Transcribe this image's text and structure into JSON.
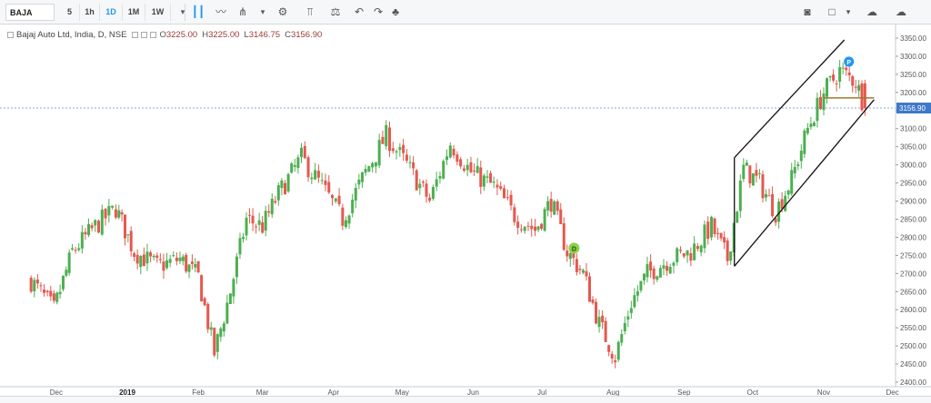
{
  "toolbar": {
    "symbol": "BAJA",
    "timeframes": [
      "5",
      "1h",
      "1D",
      "1M",
      "1W"
    ],
    "active_timeframe": "1D"
  },
  "legend": {
    "title": "Bajaj Auto Ltd, India, D, NSE",
    "open_label": "O",
    "open": "3225.00",
    "high_label": "H",
    "high": "3225.00",
    "low_label": "L",
    "low": "3146.75",
    "close_label": "C",
    "close": "3156.90"
  },
  "markers": {
    "dividend": "D",
    "pivot": "P"
  },
  "price_label": "3156.90",
  "colors": {
    "up": "#4caf50",
    "down": "#e5584f",
    "trend": "#111111",
    "hline": "#a0782d",
    "price_line": "#5b8fd6"
  },
  "chart_data": {
    "type": "candlestick",
    "x_ticks": [
      "Dec",
      "2019",
      "Feb",
      "Mar",
      "Apr",
      "May",
      "Jun",
      "Jul",
      "Aug",
      "Sep",
      "Oct",
      "Nov",
      "Dec"
    ],
    "y_ticks": [
      2400,
      2450,
      2500,
      2550,
      2600,
      2650,
      2700,
      2750,
      2800,
      2850,
      2900,
      2950,
      3000,
      3050,
      3100,
      3150,
      3200,
      3250,
      3300,
      3350
    ],
    "ylim": [
      2390,
      3370
    ],
    "last_price": 3156.9,
    "close_path": [
      [
        "2018-11-20",
        2680
      ],
      [
        "2018-11-30",
        2600
      ],
      [
        "2018-12-08",
        2760
      ],
      [
        "2018-12-18",
        2830
      ],
      [
        "2018-12-27",
        2880
      ],
      [
        "2019-01-04",
        2760
      ],
      [
        "2019-01-14",
        2720
      ],
      [
        "2019-01-24",
        2740
      ],
      [
        "2019-02-01",
        2690
      ],
      [
        "2019-02-08",
        2480
      ],
      [
        "2019-02-15",
        2650
      ],
      [
        "2019-02-22",
        2850
      ],
      [
        "2019-03-01",
        2830
      ],
      [
        "2019-03-08",
        2920
      ],
      [
        "2019-03-18",
        3020
      ],
      [
        "2019-03-27",
        2940
      ],
      [
        "2019-04-05",
        2850
      ],
      [
        "2019-04-15",
        2980
      ],
      [
        "2019-04-24",
        3080
      ],
      [
        "2019-05-03",
        3000
      ],
      [
        "2019-05-13",
        2900
      ],
      [
        "2019-05-22",
        3060
      ],
      [
        "2019-05-31",
        2980
      ],
      [
        "2019-06-10",
        2940
      ],
      [
        "2019-06-19",
        2860
      ],
      [
        "2019-06-28",
        2820
      ],
      [
        "2019-07-05",
        2900
      ],
      [
        "2019-07-12",
        2760
      ],
      [
        "2019-07-19",
        2700
      ],
      [
        "2019-07-26",
        2560
      ],
      [
        "2019-08-02",
        2470
      ],
      [
        "2019-08-09",
        2620
      ],
      [
        "2019-08-16",
        2700
      ],
      [
        "2019-08-26",
        2740
      ],
      [
        "2019-09-04",
        2760
      ],
      [
        "2019-09-13",
        2830
      ],
      [
        "2019-09-20",
        2740
      ],
      [
        "2019-09-27",
        2990
      ],
      [
        "2019-10-04",
        2950
      ],
      [
        "2019-10-11",
        2870
      ],
      [
        "2019-10-18",
        2960
      ],
      [
        "2019-10-25",
        3100
      ],
      [
        "2019-11-01",
        3200
      ],
      [
        "2019-11-08",
        3260
      ],
      [
        "2019-11-15",
        3230
      ],
      [
        "2019-11-19",
        3156.9
      ]
    ],
    "trendlines": [
      {
        "from": [
          "2019-09-23",
          3020
        ],
        "to": [
          "2019-11-10",
          3345
        ]
      },
      {
        "from": [
          "2019-09-23",
          2720
        ],
        "to": [
          "2019-11-23",
          3180
        ]
      },
      {
        "from": [
          "2019-09-23",
          3020
        ],
        "to": [
          "2019-09-23",
          2720
        ]
      }
    ],
    "hline": {
      "from": "2019-11-01",
      "to": "2019-11-23",
      "value": 3185
    }
  }
}
